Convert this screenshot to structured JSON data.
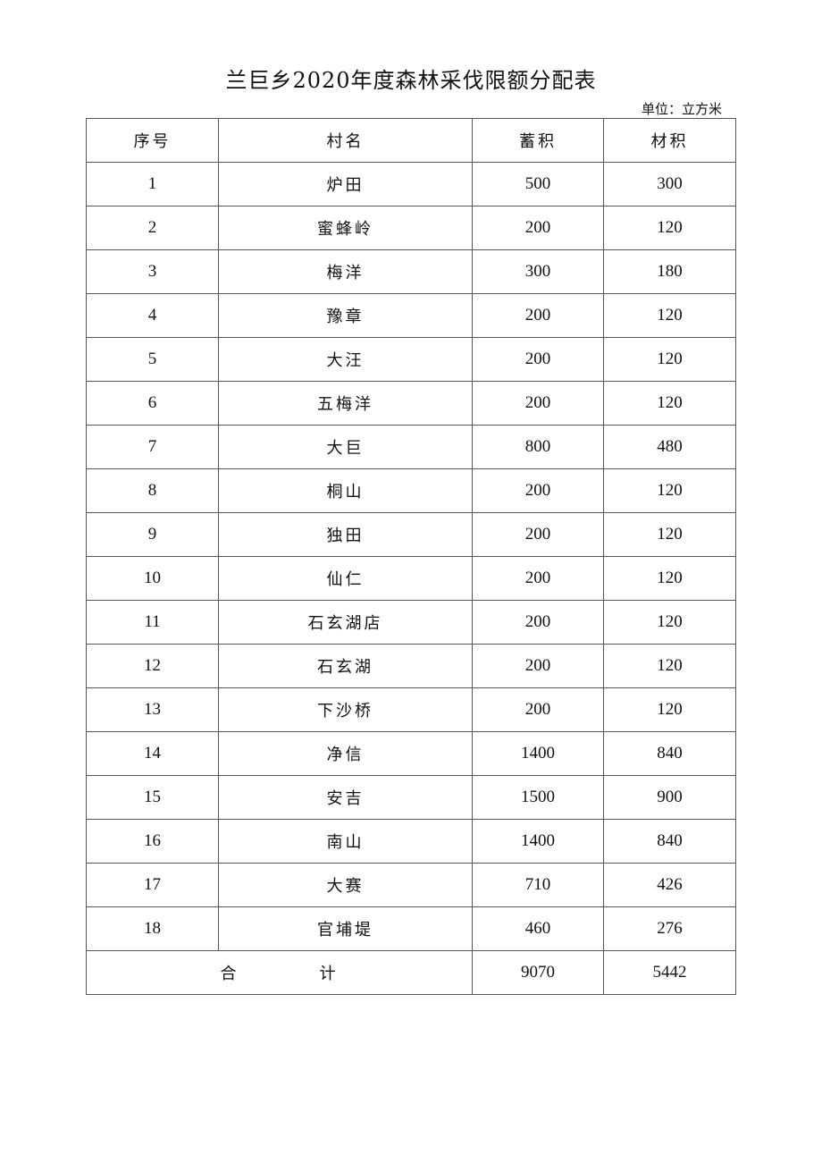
{
  "title": "兰巨乡2020年度森林采伐限额分配表",
  "unit": "单位：立方米",
  "headers": [
    "序号",
    "村名",
    "蓄积",
    "材积"
  ],
  "rows": [
    [
      "1",
      "炉田",
      "500",
      "300"
    ],
    [
      "2",
      "蜜蜂岭",
      "200",
      "120"
    ],
    [
      "3",
      "梅洋",
      "300",
      "180"
    ],
    [
      "4",
      "豫章",
      "200",
      "120"
    ],
    [
      "5",
      "大汪",
      "200",
      "120"
    ],
    [
      "6",
      "五梅洋",
      "200",
      "120"
    ],
    [
      "7",
      "大巨",
      "800",
      "480"
    ],
    [
      "8",
      "桐山",
      "200",
      "120"
    ],
    [
      "9",
      "独田",
      "200",
      "120"
    ],
    [
      "10",
      "仙仁",
      "200",
      "120"
    ],
    [
      "11",
      "石玄湖店",
      "200",
      "120"
    ],
    [
      "12",
      "石玄湖",
      "200",
      "120"
    ],
    [
      "13",
      "下沙桥",
      "200",
      "120"
    ],
    [
      "14",
      "净信",
      "1400",
      "840"
    ],
    [
      "15",
      "安吉",
      "1500",
      "900"
    ],
    [
      "16",
      "南山",
      "1400",
      "840"
    ],
    [
      "17",
      "大赛",
      "710",
      "426"
    ],
    [
      "18",
      "官埔堤",
      "460",
      "276"
    ]
  ],
  "total": {
    "label_left": "合",
    "label_right": "计",
    "stock": "9070",
    "timber": "5442"
  }
}
